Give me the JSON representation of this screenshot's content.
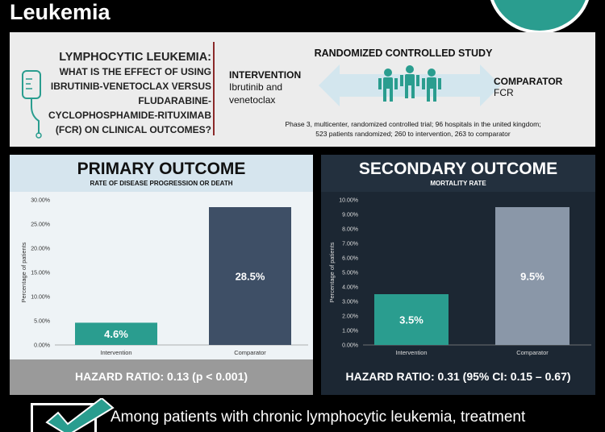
{
  "header": {
    "title": "Leukemia"
  },
  "question": {
    "title": "LYMPHOCYTIC LEUKEMIA:",
    "line1": "WHAT IS THE EFFECT OF USING",
    "line2": "IBRUTINIB-VENETOCLAX VERSUS",
    "line3": "FLUDARABINE-",
    "line4": "CYCLOPHOSPHAMIDE-RITUXIMAB",
    "line5": "(FCR) ON CLINICAL OUTCOMES?"
  },
  "study": {
    "title": "RANDOMIZED CONTROLLED STUDY",
    "intervention_label": "INTERVENTION",
    "intervention_line1": "Ibrutinib and",
    "intervention_line2": "venetoclax",
    "comparator_label": "COMPARATOR",
    "comparator_value": "FCR",
    "desc_line1": "Phase 3, multicenter, randomized controlled trial; 96 hospitals in the united kingdom;",
    "desc_line2": "523 patients randomized; 260 to intervention, 263 to comparator"
  },
  "primary": {
    "title": "PRIMARY OUTCOME",
    "subtitle": "RATE OF DISEASE PROGRESSION OR DEATH",
    "hazard": "HAZARD RATIO: 0.13 (p < 0.001)"
  },
  "secondary": {
    "title": "SECONDARY OUTCOME",
    "subtitle": "MORTALITY RATE",
    "hazard": "HAZARD RATIO: 0.31 (95% CI: 0.15 – 0.67)"
  },
  "conclusion": {
    "text": "Among patients with chronic lymphocytic leukemia, treatment"
  },
  "colors": {
    "intervention_bar": "#2a9d8f",
    "comparator_bar": "#3e4f66",
    "comparator_bar_dark": "#8a97a8",
    "accent_teal": "#2a9d8f",
    "divider": "#8b2a2a"
  },
  "icons": [
    "iv-bag-icon",
    "people-icon",
    "double-arrow-icon",
    "checkmark-icon"
  ],
  "chart_data": [
    {
      "type": "bar",
      "title": "PRIMARY OUTCOME",
      "subtitle": "RATE OF DISEASE PROGRESSION OR DEATH",
      "categories": [
        "Intervention",
        "Comparator"
      ],
      "values": [
        4.6,
        28.5
      ],
      "value_labels": [
        "4.6%",
        "28.5%"
      ],
      "ylabel": "Percentage of patients",
      "ylim": [
        0,
        30
      ],
      "yticks": [
        0,
        5,
        10,
        15,
        20,
        25,
        30
      ],
      "ytick_labels": [
        "0.00%",
        "5.00%",
        "10.00%",
        "15.00%",
        "20.00%",
        "25.00%",
        "30.00%"
      ],
      "grid": false,
      "legend": "none"
    },
    {
      "type": "bar",
      "title": "SECONDARY OUTCOME",
      "subtitle": "MORTALITY RATE",
      "categories": [
        "Intervention",
        "Comparator"
      ],
      "values": [
        3.5,
        9.5
      ],
      "value_labels": [
        "3.5%",
        "9.5%"
      ],
      "ylabel": "Percentage of patients",
      "ylim": [
        0,
        10
      ],
      "yticks": [
        0,
        1,
        2,
        3,
        4,
        5,
        6,
        7,
        8,
        9,
        10
      ],
      "ytick_labels": [
        "0.00%",
        "1.00%",
        "2.00%",
        "3.00%",
        "4.00%",
        "5.00%",
        "6.00%",
        "7.00%",
        "8.00%",
        "9.00%",
        "10.00%"
      ],
      "grid": false,
      "legend": "none"
    }
  ]
}
